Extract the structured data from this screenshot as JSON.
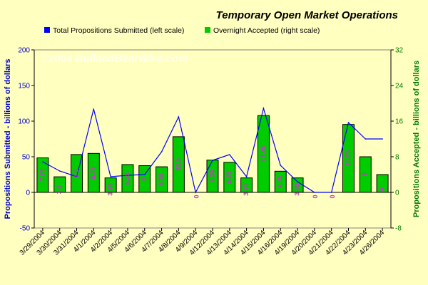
{
  "chart_data": {
    "type": "bar",
    "title": "Temporary Open Market Operations",
    "watermark": "©2004 BullandBearWise.com",
    "categories": [
      "3/29/2004",
      "3/30/2004",
      "3/31/2004",
      "4/1/2004",
      "4/2/2004",
      "4/5/2004",
      "4/6/2004",
      "4/7/2004",
      "4/8/2004",
      "4/9/2004",
      "4/12/2004",
      "4/13/2004",
      "4/14/2004",
      "4/15/2004",
      "4/16/2004",
      "4/19/2004",
      "4/20/2004",
      "4/21/2004",
      "4/22/2004",
      "4/23/2004",
      "4/26/2004"
    ],
    "series": [
      {
        "name": "Total Propositions Submitted (left scale)",
        "type": "line",
        "axis": "left",
        "color": "#0000ff",
        "values": [
          43,
          30,
          22,
          117,
          22,
          24,
          25,
          57,
          106,
          0,
          45,
          53,
          22,
          118,
          38,
          15,
          0,
          0,
          98,
          75,
          75
        ]
      },
      {
        "name": "Overnight Accepted (right scale)",
        "type": "bar",
        "axis": "right",
        "color": "#00cc00",
        "values": [
          7.75,
          3.5,
          8.5,
          8.75,
          3.25,
          6.25,
          6.0,
          5.75,
          12.5,
          0,
          7.25,
          6.75,
          3.25,
          17.25,
          4.75,
          3.25,
          0,
          0,
          15.25,
          8.0,
          4.0
        ],
        "labels": [
          "7.75",
          "3.5",
          "8.5",
          "8.75",
          "3.25",
          "6.25",
          "6",
          "5.75",
          "12.5",
          "0",
          "7.25",
          "6.75",
          "3.25",
          "17.25",
          "4.75",
          "3.25",
          "0",
          "0",
          "15.25",
          "8",
          "4"
        ]
      }
    ],
    "ylabel_left": "Propositions Submitted - billions of dollars",
    "ylabel_right": "Propositions Accepted - billions of dollars",
    "ylim_left": [
      -50,
      200
    ],
    "yticks_left": [
      "-50",
      "0",
      "50",
      "100",
      "150",
      "200"
    ],
    "ylim_right": [
      -8,
      32
    ],
    "yticks_right": [
      "-8",
      "0",
      "8",
      "16",
      "24",
      "32"
    ],
    "legend_position": "top",
    "grid": false,
    "colors": {
      "background": "#ffffc0",
      "plot": "#ffffc0",
      "bar": "#00cc00",
      "line": "#0000ff",
      "label": "#cc33cc"
    }
  }
}
